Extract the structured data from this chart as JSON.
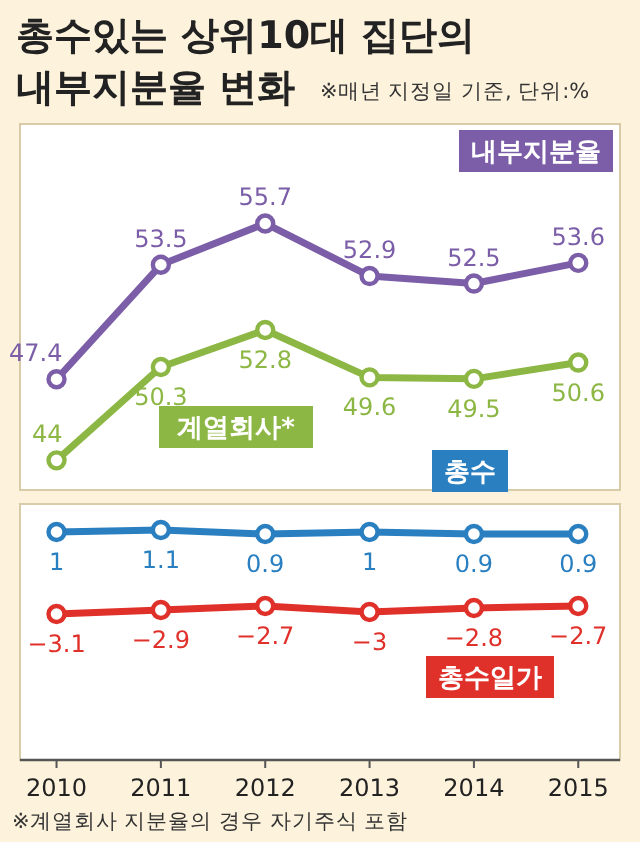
{
  "chart_data": [
    {
      "type": "line",
      "title": "총수있는 상위10대 집단의 내부지분율 변화",
      "subtitle": "※매년 지정일 기준, 단위:%",
      "x": [
        2010,
        2011,
        2012,
        2013,
        2014,
        2015
      ],
      "xlim": [
        2009.65,
        2015.4
      ],
      "ylim": [
        41.5,
        61
      ],
      "y2lim": [
        42,
        66.7
      ],
      "tick_labels": false,
      "legend": false,
      "marker": "circle",
      "line_style": "solid",
      "data_labels": true,
      "series": [
        {
          "name": "내부지분율",
          "color": "#7b5ea7",
          "axis": "y",
          "values": [
            47.4,
            53.5,
            55.7,
            52.9,
            52.5,
            53.6
          ]
        },
        {
          "name": "계열회사*",
          "color": "#8db744",
          "axis": "y2",
          "values": [
            44,
            50.3,
            52.8,
            49.6,
            49.5,
            50.6
          ]
        }
      ]
    },
    {
      "type": "line",
      "x": [
        2010,
        2011,
        2012,
        2013,
        2014,
        2015
      ],
      "xlim": [
        2009.65,
        2015.4
      ],
      "xticks": [
        2010,
        2011,
        2012,
        2013,
        2014,
        2015
      ],
      "ylim": [
        -10.4,
        2.4
      ],
      "tick_labels": "x",
      "legend": false,
      "marker": "circle",
      "line_style": "solid",
      "data_labels": true,
      "series": [
        {
          "name": "총수",
          "color": "#2a7fc1",
          "values": [
            1,
            1.1,
            0.9,
            1,
            0.9,
            0.9
          ]
        },
        {
          "name": "총수일가",
          "color": "#e0302a",
          "values": [
            -3.1,
            -2.9,
            -2.7,
            -3,
            -2.8,
            -2.7
          ]
        }
      ],
      "annotations": [
        "※계열회사 지분율의 경우 자기주식 포함"
      ]
    }
  ]
}
